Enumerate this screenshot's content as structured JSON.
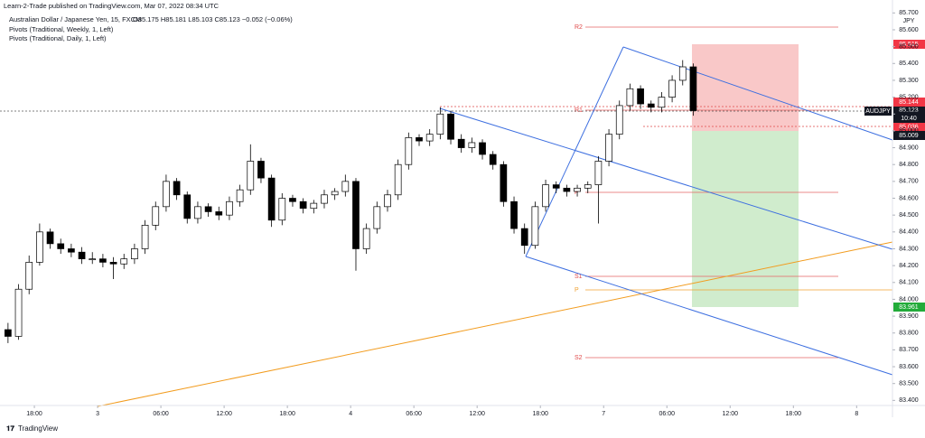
{
  "header": {
    "publisher": "Learn-2-Trade published on TradingView.com, Mar 07, 2022 08:34 UTC",
    "symbol": "Australian Dollar / Japanese Yen, 15, FXCM",
    "ohlc": "O85.175 H85.181 L85.103 C85.123 −0.052 (−0.06%)",
    "indicator_1": "Pivots (Traditional, Weekly, 1, Left)",
    "indicator_2": "Pivots (Traditional, Daily, 1, Left)"
  },
  "footer": "TradingView",
  "currency": "JPY",
  "pivot_labels": [
    "R2",
    "R1",
    "P",
    "S1",
    "P",
    "S2"
  ],
  "price_tags": [
    "85.515",
    "85.144",
    "85.123",
    "10:40",
    "85.036",
    "85.009",
    "83.961"
  ],
  "symbol_tag": "AUDJPY",
  "chart_data": {
    "type": "candlestick",
    "x": [
      -2.5,
      -1.5,
      -0.5,
      0.5,
      1.5,
      2.5,
      3.5,
      4.5,
      5.5,
      6.5,
      7.5,
      8.5,
      9.5,
      10.5,
      11.5,
      12.5,
      13.5,
      14.5,
      15.5,
      16.5,
      17.5,
      18.5,
      19.5,
      20.5,
      21.5,
      22.5,
      23.5,
      24.5,
      25.5,
      26.5,
      27.5,
      28.5,
      29.5,
      30.5,
      31.5,
      32.5,
      33.5,
      34.5,
      35.5,
      36.5,
      37.5,
      38.5,
      39.5,
      40.5,
      41.5,
      42.5,
      43.5,
      44.5,
      45.5,
      46.5,
      47.5,
      48.5,
      49.5,
      50.5,
      51.5,
      52.5,
      53.5,
      54.5,
      55.5,
      56.5,
      57.5,
      58.5,
      59.5,
      60.5,
      61.5,
      62.5
    ],
    "open": [
      83.82,
      83.78,
      84.06,
      84.22,
      84.4,
      84.33,
      84.3,
      84.28,
      84.24,
      84.24,
      84.22,
      84.21,
      84.24,
      84.3,
      84.44,
      84.55,
      84.7,
      84.62,
      84.48,
      84.55,
      84.52,
      84.5,
      84.58,
      84.65,
      84.82,
      84.72,
      84.47,
      84.6,
      84.58,
      84.54,
      84.57,
      84.62,
      84.64,
      84.7,
      84.3,
      84.42,
      84.55,
      84.62,
      84.8,
      84.96,
      84.94,
      84.98,
      85.1,
      84.95,
      84.9,
      84.93,
      84.86,
      84.8,
      84.58,
      84.42,
      84.32,
      84.55,
      84.68,
      84.66,
      84.64,
      84.66,
      84.68,
      84.82,
      84.98,
      85.15,
      85.25,
      85.16,
      85.14,
      85.2,
      85.3,
      85.38
    ],
    "high": [
      83.86,
      84.09,
      84.26,
      84.45,
      84.42,
      84.36,
      84.33,
      84.31,
      84.28,
      84.27,
      84.25,
      84.27,
      84.33,
      84.47,
      84.58,
      84.74,
      84.72,
      84.64,
      84.58,
      84.57,
      84.55,
      84.61,
      84.68,
      84.92,
      84.84,
      84.74,
      84.63,
      84.62,
      84.6,
      84.59,
      84.65,
      84.66,
      84.74,
      84.72,
      84.45,
      84.58,
      84.65,
      84.83,
      84.99,
      84.98,
      85.01,
      85.14,
      85.12,
      84.98,
      84.96,
      84.95,
      84.88,
      84.82,
      84.61,
      84.45,
      84.58,
      84.71,
      84.7,
      84.68,
      84.68,
      84.7,
      84.85,
      85.01,
      85.18,
      85.28,
      85.27,
      85.18,
      85.23,
      85.33,
      85.42,
      85.4
    ],
    "low": [
      83.74,
      83.76,
      84.03,
      84.2,
      84.3,
      84.27,
      84.25,
      84.21,
      84.21,
      84.19,
      84.12,
      84.18,
      84.21,
      84.27,
      84.41,
      84.52,
      84.59,
      84.45,
      84.45,
      84.49,
      84.47,
      84.47,
      84.55,
      84.62,
      84.69,
      84.43,
      84.44,
      84.55,
      84.51,
      84.51,
      84.54,
      84.59,
      84.61,
      84.17,
      84.27,
      84.39,
      84.52,
      84.59,
      84.77,
      84.91,
      84.91,
      84.95,
      84.92,
      84.87,
      84.87,
      84.83,
      84.77,
      84.55,
      84.39,
      84.27,
      84.3,
      84.52,
      84.63,
      84.61,
      84.61,
      84.63,
      84.45,
      84.79,
      84.95,
      85.12,
      85.13,
      85.11,
      85.11,
      85.17,
      85.27,
      85.09
    ],
    "close": [
      83.78,
      84.06,
      84.22,
      84.4,
      84.33,
      84.3,
      84.28,
      84.24,
      84.24,
      84.22,
      84.21,
      84.24,
      84.3,
      84.44,
      84.55,
      84.7,
      84.62,
      84.48,
      84.55,
      84.52,
      84.5,
      84.58,
      84.65,
      84.82,
      84.72,
      84.47,
      84.6,
      84.58,
      84.54,
      84.57,
      84.62,
      84.64,
      84.7,
      84.3,
      84.42,
      84.55,
      84.62,
      84.8,
      84.96,
      84.94,
      84.98,
      85.1,
      84.95,
      84.9,
      84.93,
      84.86,
      84.8,
      84.58,
      84.42,
      84.32,
      84.55,
      84.68,
      84.66,
      84.64,
      84.66,
      84.68,
      84.82,
      84.98,
      85.15,
      85.25,
      85.16,
      85.14,
      85.2,
      85.3,
      85.38,
      85.12
    ],
    "up_color": "#ffffff",
    "down_color": "#000000",
    "xlim": [
      -3.26,
      81.4
    ],
    "xticks": [
      {
        "value": 0,
        "label": "18:00"
      },
      {
        "value": 6,
        "label": "3"
      },
      {
        "value": 12,
        "label": "06:00"
      },
      {
        "value": 18,
        "label": "12:00"
      },
      {
        "value": 24,
        "label": "18:00"
      },
      {
        "value": 30,
        "label": "4"
      },
      {
        "value": 36,
        "label": "06:00"
      },
      {
        "value": 42,
        "label": "12:00"
      },
      {
        "value": 48,
        "label": "18:00"
      },
      {
        "value": 54,
        "label": "7"
      },
      {
        "value": 60,
        "label": "06:00"
      },
      {
        "value": 66,
        "label": "12:00"
      },
      {
        "value": 72,
        "label": "18:00"
      },
      {
        "value": 78,
        "label": "8"
      }
    ],
    "ylim": [
      83.3,
      85.75
    ],
    "yticks": [
      {
        "value": 83.4,
        "label": "83.400"
      },
      {
        "value": 83.5,
        "label": "83.500"
      },
      {
        "value": 83.6,
        "label": "83.600"
      },
      {
        "value": 83.7,
        "label": "83.700"
      },
      {
        "value": 83.8,
        "label": "83.800"
      },
      {
        "value": 83.9,
        "label": "83.900"
      },
      {
        "value": 84.0,
        "label": "84.000"
      },
      {
        "value": 84.1,
        "label": "84.100"
      },
      {
        "value": 84.2,
        "label": "84.200"
      },
      {
        "value": 84.3,
        "label": "84.300"
      },
      {
        "value": 84.4,
        "label": "84.400"
      },
      {
        "value": 84.5,
        "label": "84.500"
      },
      {
        "value": 84.6,
        "label": "84.600"
      },
      {
        "value": 84.7,
        "label": "84.700"
      },
      {
        "value": 84.8,
        "label": "84.800"
      },
      {
        "value": 84.9,
        "label": "84.900"
      },
      {
        "value": 85.0,
        "label": "85.000"
      },
      {
        "value": 85.1,
        "label": "85.100"
      },
      {
        "value": 85.2,
        "label": "85.200"
      },
      {
        "value": 85.3,
        "label": "85.300"
      },
      {
        "value": 85.4,
        "label": "85.400"
      },
      {
        "value": 85.5,
        "label": "85.500"
      },
      {
        "value": 85.6,
        "label": "85.600"
      },
      {
        "value": 85.7,
        "label": "85.700"
      }
    ],
    "grid": false
  }
}
